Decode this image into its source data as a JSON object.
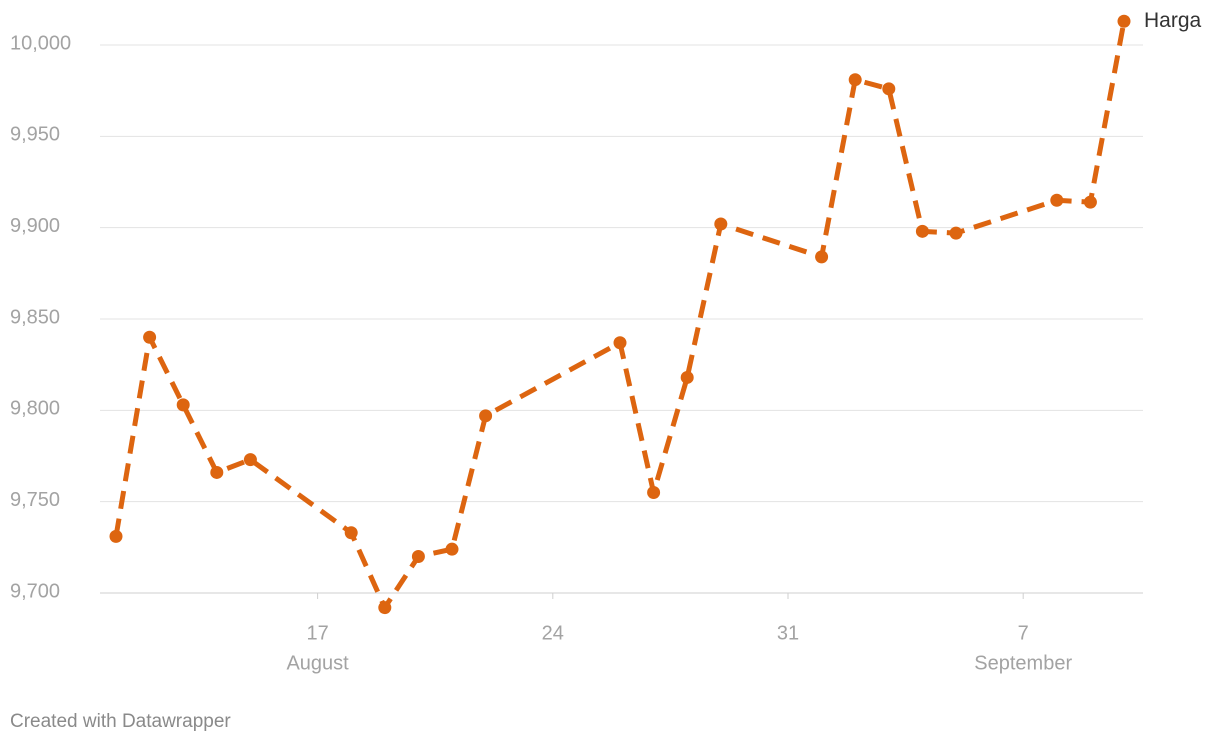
{
  "chart_data": {
    "type": "line",
    "x": [
      "08-11",
      "08-12",
      "08-13",
      "08-14",
      "08-15",
      "08-18",
      "08-19",
      "08-20",
      "08-21",
      "08-22",
      "08-26",
      "08-27",
      "08-28",
      "08-29",
      "09-01",
      "09-02",
      "09-03",
      "09-04",
      "09-05",
      "09-08",
      "09-09",
      "09-10"
    ],
    "series": [
      {
        "name": "Harga",
        "color": "#dd6510",
        "values": [
          9731,
          9840,
          9803,
          9766,
          9773,
          9733,
          9692,
          9720,
          9724,
          9797,
          9837,
          9755,
          9818,
          9902,
          9884,
          9981,
          9976,
          9898,
          9897,
          9915,
          9914,
          10013
        ]
      }
    ],
    "xlim": [
      "08-11",
      "09-10"
    ],
    "xticks": [
      {
        "value": "08-17",
        "label": "17"
      },
      {
        "value": "08-24",
        "label": "24"
      },
      {
        "value": "08-31",
        "label": "31"
      },
      {
        "value": "09-07",
        "label": "7"
      }
    ],
    "month_labels": [
      {
        "value": "08-17",
        "label": "August"
      },
      {
        "value": "09-07",
        "label": "September"
      }
    ],
    "ylim": [
      9700,
      10000
    ],
    "yticks": [
      {
        "value": 9700,
        "label": "9,700"
      },
      {
        "value": 9750,
        "label": "9,750"
      },
      {
        "value": 9800,
        "label": "9,800"
      },
      {
        "value": 9850,
        "label": "9,850"
      },
      {
        "value": 9900,
        "label": "9,900"
      },
      {
        "value": 9950,
        "label": "9,950"
      },
      {
        "value": 10000,
        "label": "10,000"
      }
    ],
    "grid": true,
    "line_style": "dashed",
    "credit": "Created with Datawrapper"
  }
}
